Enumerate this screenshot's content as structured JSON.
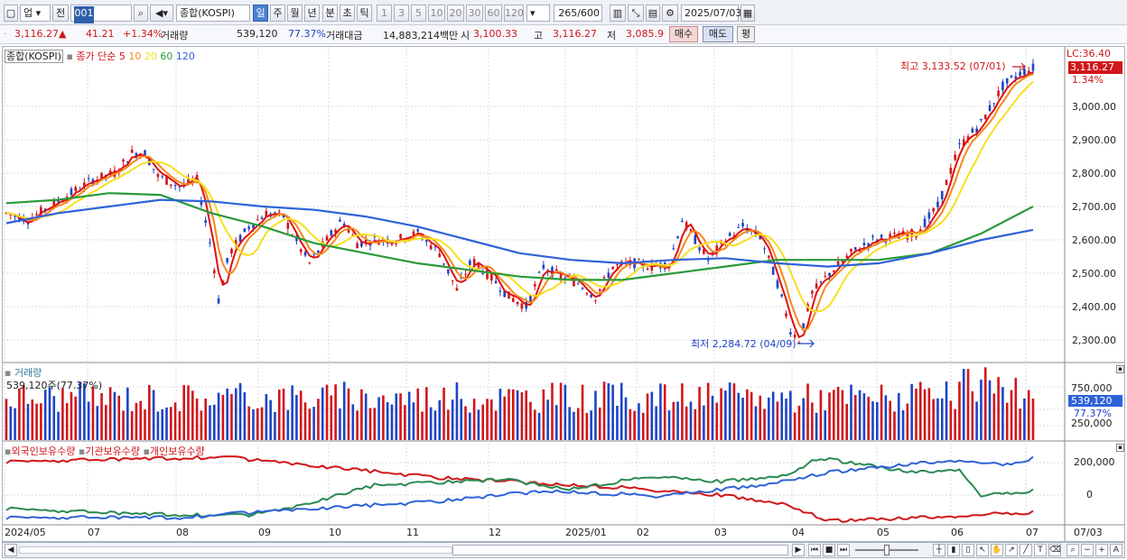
{
  "toolbar": {
    "market_select": "업",
    "prev_label": "전",
    "code_value": "001",
    "name_value": "종합(KOSPI)",
    "periods": [
      "일",
      "주",
      "월",
      "년",
      "분",
      "초",
      "틱"
    ],
    "active_period": "일",
    "intervals": [
      "1",
      "3",
      "5",
      "10",
      "20",
      "30",
      "60",
      "120"
    ],
    "count_value": "265",
    "count_total": "/600",
    "date_value": "2025/07/03"
  },
  "quote": {
    "price": "3,116.27",
    "change": "41.21",
    "change_pct": "+1.34%",
    "volume_label": "거래량",
    "volume": "539,120",
    "volume_ratio": "77.37%",
    "amount_label": "거래대금",
    "amount": "14,883,214백만",
    "open_label": "시",
    "open": "3,100.33",
    "high_label": "고",
    "high": "3,116.27",
    "low_label": "저",
    "low": "3,085.9",
    "buy_label": "매수",
    "sell_label": "매도",
    "eval_label": "평"
  },
  "main_legend": {
    "name": "종합(KOSPI)",
    "ma_label": "종가 단순",
    "ma": [
      {
        "period": "5",
        "color": "#e01010"
      },
      {
        "period": "10",
        "color": "#f28a1c"
      },
      {
        "period": "20",
        "color": "#f5e020"
      },
      {
        "period": "60",
        "color": "#2a9a3a"
      },
      {
        "period": "120",
        "color": "#2f62d8"
      }
    ]
  },
  "annotations": {
    "high": "최고 3,133.52 (07/01)",
    "low": "최저 2,284.72 (04/09)",
    "lc": "LC:36.40",
    "last_price": "3,116.27",
    "last_pct": "1.34%"
  },
  "price_axis": [
    "3,000.00",
    "2,900.00",
    "2,800.00",
    "2,700.00",
    "2,600.00",
    "2,500.00",
    "2,400.00",
    "2,300.00"
  ],
  "volume_panel": {
    "title": "거래량",
    "value_text": "539,120주(77.37%)",
    "axis": [
      "750,000",
      "500,000",
      "250,000"
    ],
    "tag_value": "539,120",
    "tag_pct": "77.37%"
  },
  "holdings_panel": {
    "series": [
      {
        "name": "외국인보유수량",
        "color": "#d0161b"
      },
      {
        "name": "기관보유수량",
        "color": "#2a8a52"
      },
      {
        "name": "개인보유수량",
        "color": "#2f62d8"
      }
    ],
    "axis": [
      "200,000",
      "0"
    ]
  },
  "date_axis": [
    "2024/05",
    "07",
    "08",
    "09",
    "10",
    "11",
    "12",
    "2025/01",
    "02",
    "03",
    "04",
    "05",
    "06",
    "07"
  ],
  "date_axis_right": "07/03",
  "colors": {
    "up": "#d0161b",
    "down": "#1d44c4",
    "grid": "#d8dbe2"
  },
  "chart_data": {
    "type": "candlestick",
    "x_range": [
      "2024/05",
      "2025/07/03"
    ],
    "ylim": [
      2250,
      3150
    ],
    "high_point": {
      "date": "07/01",
      "value": 3133.52
    },
    "low_point": {
      "date": "04/09",
      "value": 2284.72
    },
    "last_close": 3116.27,
    "moving_averages_keypoints": {
      "MA60": [
        2710,
        2720,
        2740,
        2735,
        2680,
        2640,
        2590,
        2560,
        2530,
        2510,
        2490,
        2480,
        2480,
        2500,
        2520,
        2540,
        2540,
        2540,
        2560,
        2620,
        2700
      ],
      "MA120": [
        2650,
        2680,
        2700,
        2720,
        2715,
        2700,
        2690,
        2670,
        2640,
        2600,
        2560,
        2540,
        2530,
        2540,
        2545,
        2530,
        2520,
        2530,
        2560,
        2600,
        2630
      ]
    }
  }
}
